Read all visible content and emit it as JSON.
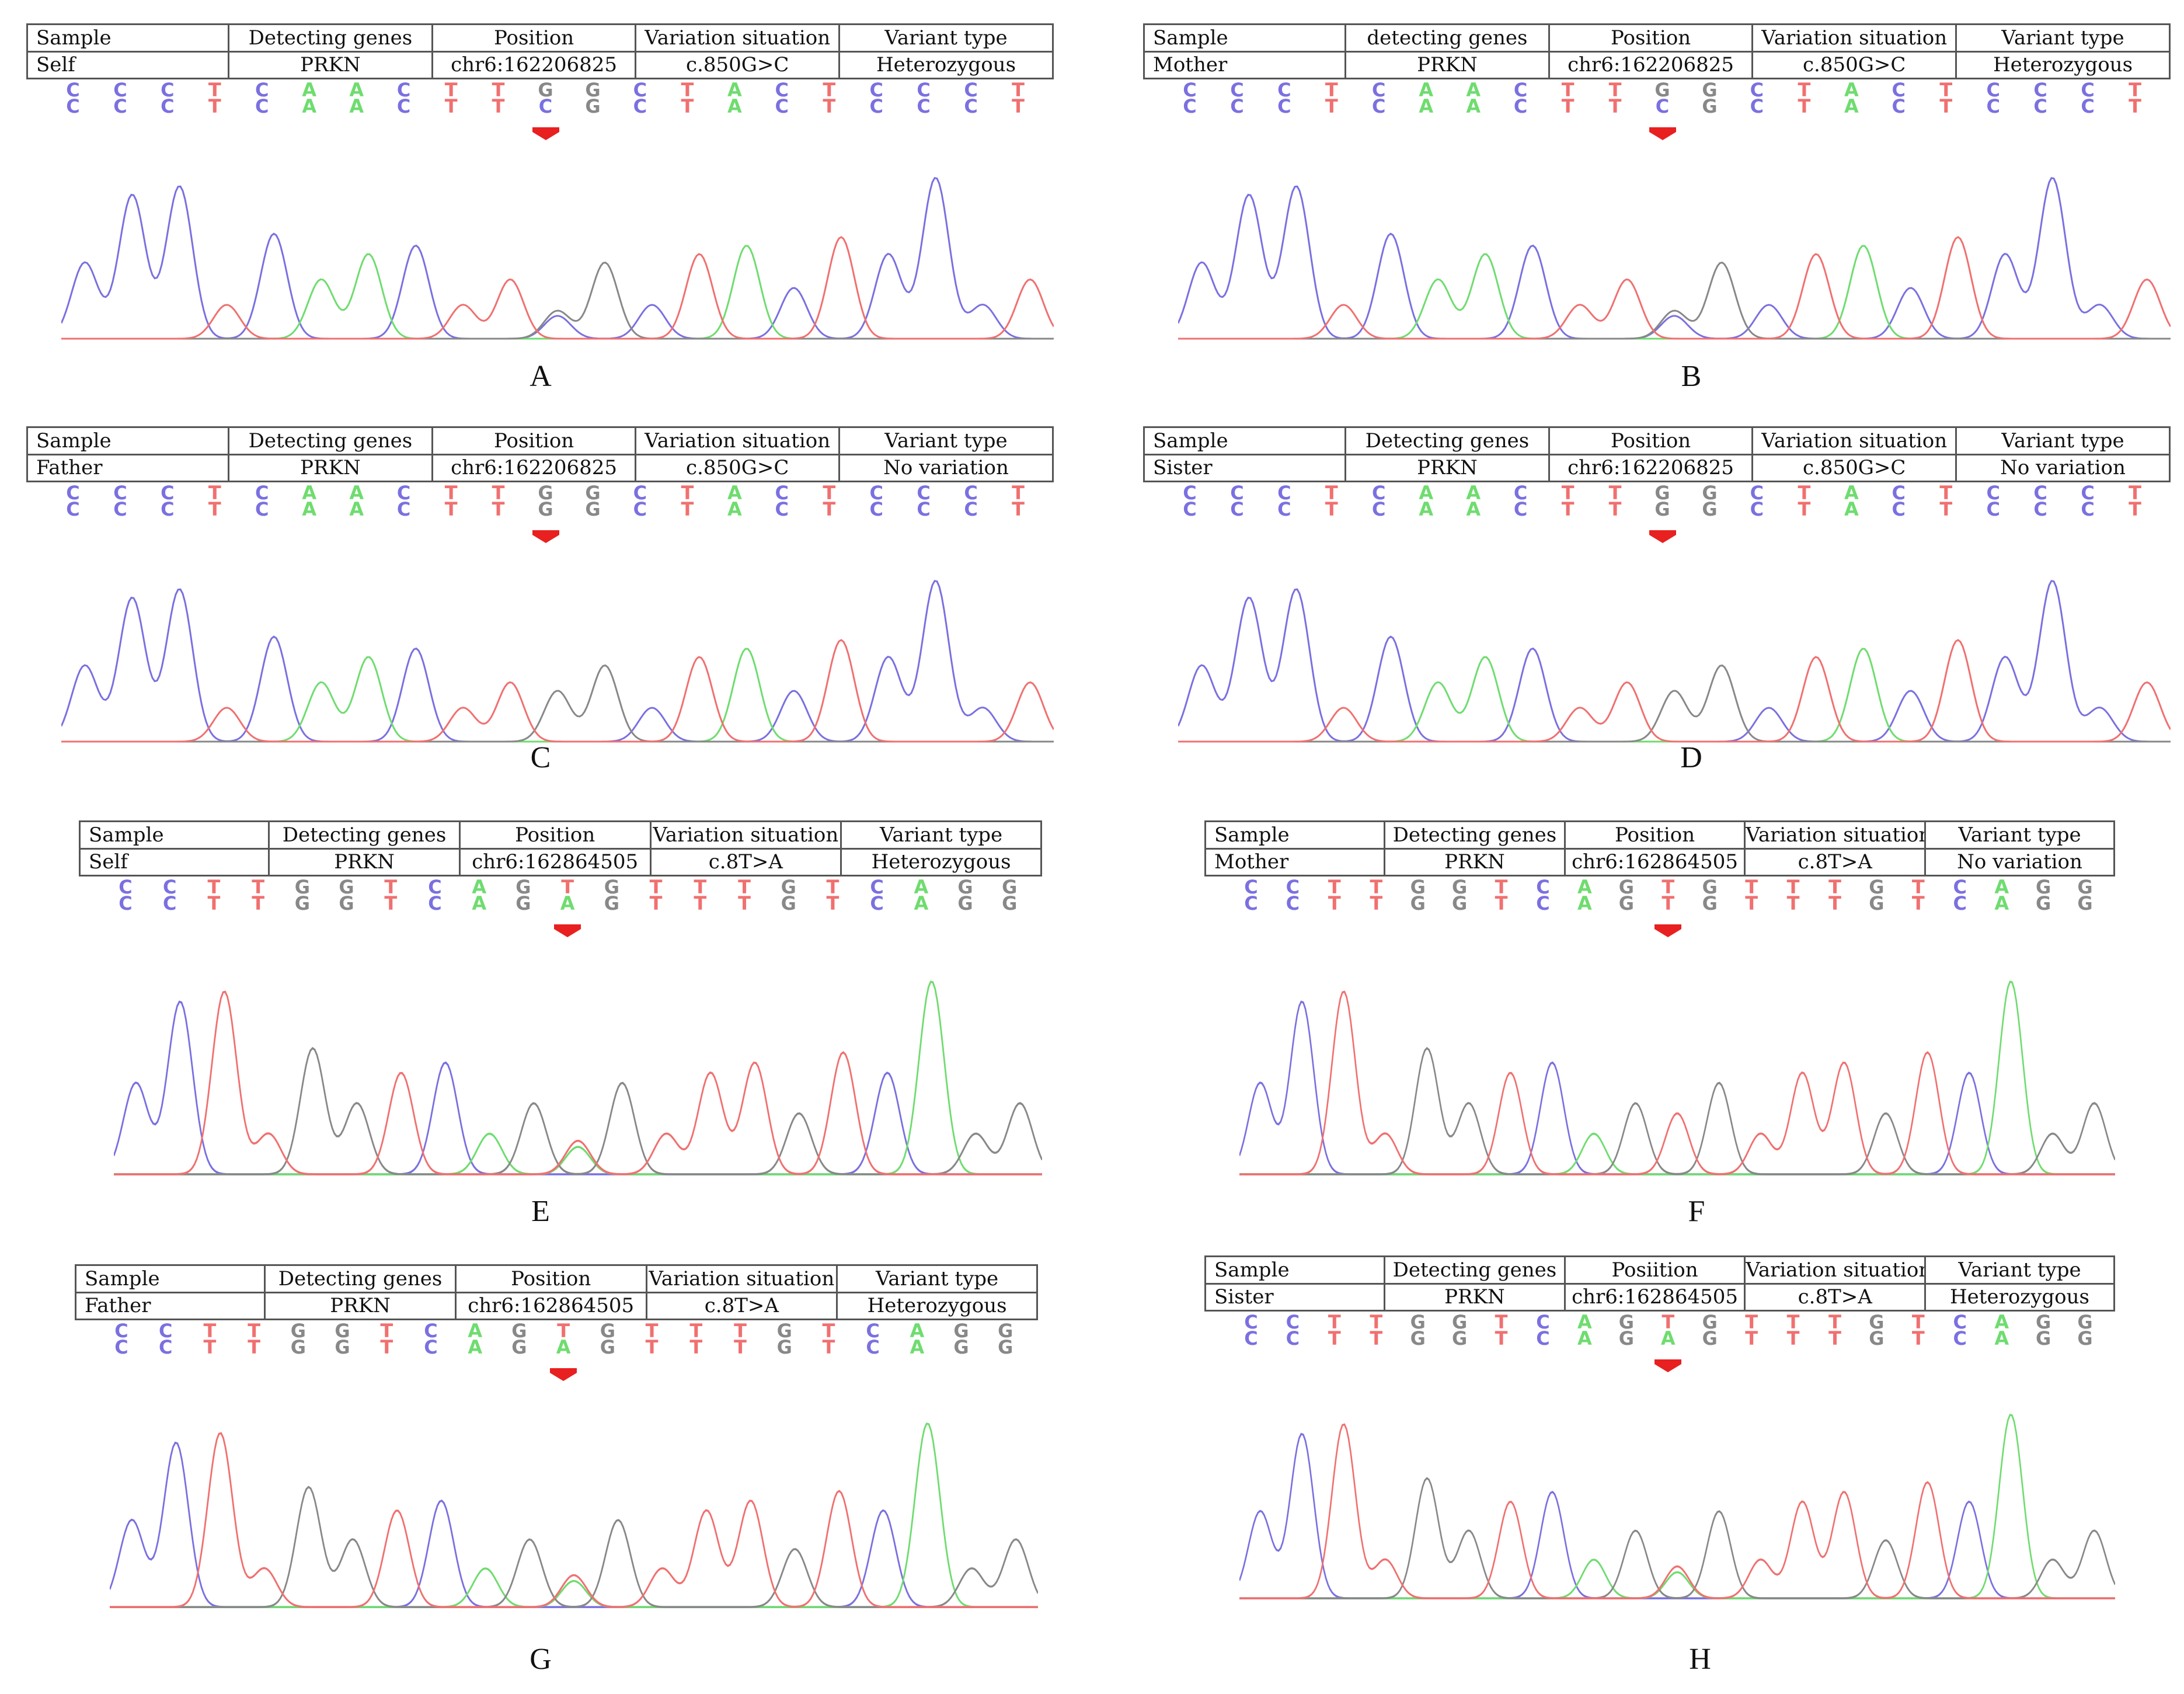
{
  "headers": [
    "Sample",
    "Detecting genes",
    "Position",
    "Variation situation",
    "Variant type"
  ],
  "headers_B": [
    "Sample",
    "detecting genes",
    "Position",
    "Variation situation",
    "Variant type"
  ],
  "headers_H": [
    "Sample",
    "Detecting genes",
    "Posiition",
    "Variation situation",
    "Variant type"
  ],
  "colors": {
    "C": "#7a70e0",
    "A": "#6fdc6f",
    "G": "#888888",
    "T": "#f07070",
    "arrow": "#e82020"
  },
  "panels": [
    {
      "label": "A",
      "sample": "Self",
      "gene": "PRKN",
      "position": "chr6:162206825",
      "variation": "c.850G>C",
      "type": "Heterozygous",
      "top": [
        "C",
        "C",
        "C",
        "T",
        "C",
        "A",
        "A",
        "C",
        "T",
        "T",
        "G",
        "G",
        "C",
        "T",
        "A",
        "C",
        "T",
        "C",
        "C",
        "C",
        "T"
      ],
      "bottom": [
        "C",
        "C",
        "C",
        "T",
        "C",
        "A",
        "A",
        "C",
        "T",
        "T",
        "C",
        "G",
        "C",
        "T",
        "A",
        "C",
        "T",
        "C",
        "C",
        "C",
        "T"
      ]
    },
    {
      "label": "B",
      "sample": "Mother",
      "gene": "PRKN",
      "position": "chr6:162206825",
      "variation": "c.850G>C",
      "type": "Heterozygous",
      "top": [
        "C",
        "C",
        "C",
        "T",
        "C",
        "A",
        "A",
        "C",
        "T",
        "T",
        "G",
        "G",
        "C",
        "T",
        "A",
        "C",
        "T",
        "C",
        "C",
        "C",
        "T"
      ],
      "bottom": [
        "C",
        "C",
        "C",
        "T",
        "C",
        "A",
        "A",
        "C",
        "T",
        "T",
        "C",
        "G",
        "C",
        "T",
        "A",
        "C",
        "T",
        "C",
        "C",
        "C",
        "T"
      ]
    },
    {
      "label": "C",
      "sample": "Father",
      "gene": "PRKN",
      "position": "chr6:162206825",
      "variation": "c.850G>C",
      "type": "No variation",
      "top": [
        "C",
        "C",
        "C",
        "T",
        "C",
        "A",
        "A",
        "C",
        "T",
        "T",
        "G",
        "G",
        "C",
        "T",
        "A",
        "C",
        "T",
        "C",
        "C",
        "C",
        "T"
      ],
      "bottom": [
        "C",
        "C",
        "C",
        "T",
        "C",
        "A",
        "A",
        "C",
        "T",
        "T",
        "G",
        "G",
        "C",
        "T",
        "A",
        "C",
        "T",
        "C",
        "C",
        "C",
        "T"
      ]
    },
    {
      "label": "D",
      "sample": "Sister",
      "gene": "PRKN",
      "position": "chr6:162206825",
      "variation": "c.850G>C",
      "type": "No variation",
      "top": [
        "C",
        "C",
        "C",
        "T",
        "C",
        "A",
        "A",
        "C",
        "T",
        "T",
        "G",
        "G",
        "C",
        "T",
        "A",
        "C",
        "T",
        "C",
        "C",
        "C",
        "T"
      ],
      "bottom": [
        "C",
        "C",
        "C",
        "T",
        "C",
        "A",
        "A",
        "C",
        "T",
        "T",
        "G",
        "G",
        "C",
        "T",
        "A",
        "C",
        "T",
        "C",
        "C",
        "C",
        "T"
      ]
    },
    {
      "label": "E",
      "sample": "Self",
      "gene": "PRKN",
      "position": "chr6:162864505",
      "variation": "c.8T>A",
      "type": "Heterozygous",
      "top": [
        "C",
        "C",
        "T",
        "T",
        "G",
        "G",
        "T",
        "C",
        "A",
        "G",
        "T",
        "G",
        "T",
        "T",
        "T",
        "G",
        "T",
        "C",
        "A",
        "G",
        "G"
      ],
      "bottom": [
        "C",
        "C",
        "T",
        "T",
        "G",
        "G",
        "T",
        "C",
        "A",
        "G",
        "A",
        "G",
        "T",
        "T",
        "T",
        "G",
        "T",
        "C",
        "A",
        "G",
        "G"
      ]
    },
    {
      "label": "F",
      "sample": "Mother",
      "gene": "PRKN",
      "position": "chr6:162864505",
      "variation": "c.8T>A",
      "type": "No variation",
      "top": [
        "C",
        "C",
        "T",
        "T",
        "G",
        "G",
        "T",
        "C",
        "A",
        "G",
        "T",
        "G",
        "T",
        "T",
        "T",
        "G",
        "T",
        "C",
        "A",
        "G",
        "G"
      ],
      "bottom": [
        "C",
        "C",
        "T",
        "T",
        "G",
        "G",
        "T",
        "C",
        "A",
        "G",
        "T",
        "G",
        "T",
        "T",
        "T",
        "G",
        "T",
        "C",
        "A",
        "G",
        "G"
      ]
    },
    {
      "label": "G",
      "sample": "Father",
      "gene": "PRKN",
      "position": "chr6:162864505",
      "variation": "c.8T>A",
      "type": "Heterozygous",
      "top": [
        "C",
        "C",
        "T",
        "T",
        "G",
        "G",
        "T",
        "C",
        "A",
        "G",
        "T",
        "G",
        "T",
        "T",
        "T",
        "G",
        "T",
        "C",
        "A",
        "G",
        "G"
      ],
      "bottom": [
        "C",
        "C",
        "T",
        "T",
        "G",
        "G",
        "T",
        "C",
        "A",
        "G",
        "A",
        "G",
        "T",
        "T",
        "T",
        "G",
        "T",
        "C",
        "A",
        "G",
        "G"
      ]
    },
    {
      "label": "H",
      "sample": "Sister",
      "gene": "PRKN",
      "position": "chr6:162864505",
      "variation": "c.8T>A",
      "type": "Heterozygous",
      "top": [
        "C",
        "C",
        "T",
        "T",
        "G",
        "G",
        "T",
        "C",
        "A",
        "G",
        "T",
        "G",
        "T",
        "T",
        "T",
        "G",
        "T",
        "C",
        "A",
        "G",
        "G"
      ],
      "bottom": [
        "C",
        "C",
        "T",
        "T",
        "G",
        "G",
        "T",
        "C",
        "A",
        "G",
        "A",
        "G",
        "T",
        "T",
        "T",
        "G",
        "T",
        "C",
        "A",
        "G",
        "G"
      ]
    }
  ]
}
